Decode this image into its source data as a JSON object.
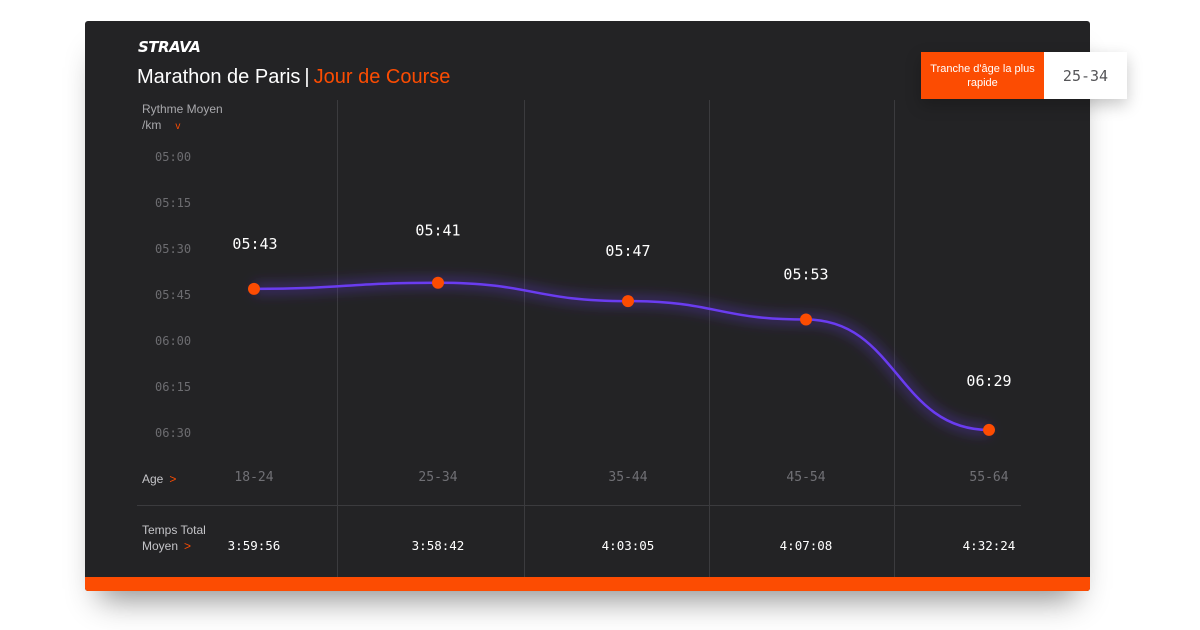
{
  "brand": "STRAVA",
  "title": {
    "main": "Marathon de Paris",
    "separator": "|",
    "accent": "Jour de Course"
  },
  "badge": {
    "label": "Tranche d'âge la plus rapide",
    "value": "25-34"
  },
  "y_axis": {
    "label_line1": "Rythme Moyen",
    "label_line2": "/km",
    "chevron": "v"
  },
  "row_labels": {
    "age": "Age",
    "age_arrow": ">",
    "total_time_line1": "Temps Total",
    "total_time_line2": "Moyen",
    "total_time_arrow": ">"
  },
  "colors": {
    "accent": "#fc4c02",
    "line": "#6a3cf0",
    "background": "#232325"
  },
  "chart_data": {
    "type": "line",
    "title": "",
    "xlabel": "Age",
    "ylabel": "Rythme Moyen /km",
    "categories": [
      "18-24",
      "25-34",
      "35-44",
      "45-54",
      "55-64"
    ],
    "y_ticks": [
      "05:00",
      "05:15",
      "05:30",
      "05:45",
      "06:00",
      "06:15",
      "06:30"
    ],
    "ylim_seconds": [
      300,
      390
    ],
    "y_inverted": true,
    "series": [
      {
        "values_seconds": [
          343,
          341,
          347,
          353,
          389
        ]
      }
    ],
    "data_labels": [
      "05:43",
      "05:41",
      "05:47",
      "05:53",
      "06:29"
    ],
    "total_times": [
      "3:59:56",
      "3:58:42",
      "4:03:05",
      "4:07:08",
      "4:32:24"
    ]
  }
}
